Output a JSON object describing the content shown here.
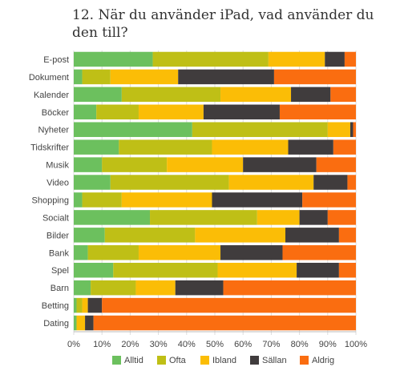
{
  "chart_data": {
    "type": "bar",
    "orientation": "horizontal",
    "stacked": true,
    "title": "12. När du använder iPad, vad använder du den till?",
    "categories": [
      "E-post",
      "Dokument",
      "Kalender",
      "Böcker",
      "Nyheter",
      "Tidskrifter",
      "Musik",
      "Video",
      "Shopping",
      "Socialt",
      "Bilder",
      "Bank",
      "Spel",
      "Barn",
      "Betting",
      "Dating"
    ],
    "series": [
      {
        "name": "Alltid",
        "color": "#6cc05e",
        "values": [
          28,
          3,
          17,
          8,
          42,
          16,
          10,
          13,
          3,
          27,
          11,
          5,
          14,
          6,
          1,
          1
        ]
      },
      {
        "name": "Ofta",
        "color": "#bfbf16",
        "values": [
          41,
          10,
          35,
          15,
          48,
          33,
          23,
          42,
          14,
          38,
          32,
          18,
          37,
          16,
          2,
          0
        ]
      },
      {
        "name": "Ibland",
        "color": "#fbbd06",
        "values": [
          20,
          24,
          25,
          23,
          8,
          27,
          27,
          30,
          32,
          15,
          32,
          29,
          28,
          14,
          2,
          3
        ]
      },
      {
        "name": "Sällan",
        "color": "#403c3d",
        "values": [
          7,
          34,
          14,
          27,
          1,
          16,
          26,
          12,
          32,
          10,
          19,
          22,
          15,
          17,
          5,
          3
        ]
      },
      {
        "name": "Aldrig",
        "color": "#fa6d10",
        "values": [
          4,
          29,
          9,
          27,
          1,
          8,
          14,
          3,
          19,
          10,
          6,
          26,
          6,
          47,
          90,
          93
        ]
      }
    ],
    "x_ticks": [
      "0%",
      "10%",
      "20%",
      "30%",
      "40%",
      "50%",
      "60%",
      "70%",
      "80%",
      "90%",
      "100%"
    ],
    "xlim": [
      0,
      100
    ],
    "grid": true,
    "legend_position": "bottom"
  }
}
